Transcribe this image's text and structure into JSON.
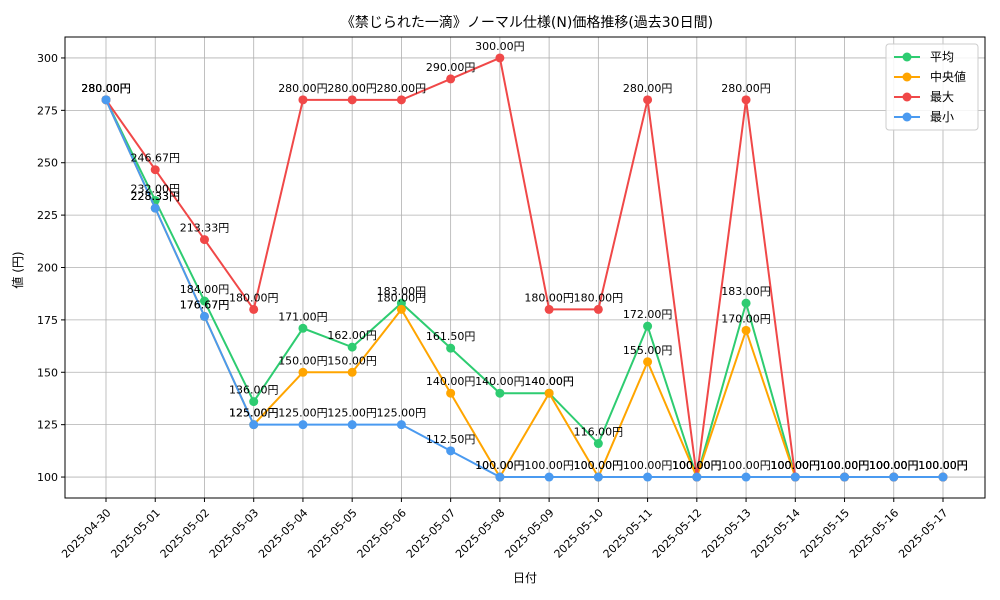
{
  "chart_data": {
    "type": "line",
    "title": "《禁じられた一滴》ノーマル仕様(N)価格推移(過去30日間)",
    "xlabel": "日付",
    "ylabel": "値 (円)",
    "ylim": [
      90,
      310
    ],
    "yticks": [
      100,
      125,
      150,
      175,
      200,
      225,
      250,
      275,
      300
    ],
    "grid": true,
    "legend_position": "top-right",
    "value_suffix": "円",
    "categories": [
      "2025-04-30",
      "2025-05-01",
      "2025-05-02",
      "2025-05-03",
      "2025-05-04",
      "2025-05-05",
      "2025-05-06",
      "2025-05-07",
      "2025-05-08",
      "2025-05-09",
      "2025-05-10",
      "2025-05-11",
      "2025-05-12",
      "2025-05-13",
      "2025-05-14",
      "2025-05-15",
      "2025-05-16",
      "2025-05-17"
    ],
    "series": [
      {
        "name": "平均",
        "color": "#2ecc71",
        "values": [
          280.0,
          232.0,
          184.0,
          136.0,
          171.0,
          162.0,
          183.0,
          161.5,
          140.0,
          140.0,
          116.0,
          172.0,
          100.0,
          183.0,
          100.0,
          100.0,
          100.0,
          100.0
        ]
      },
      {
        "name": "中央値",
        "color": "#ffa500",
        "values": [
          280.0,
          228.33,
          176.67,
          125.0,
          150.0,
          150.0,
          180.0,
          140.0,
          100.0,
          140.0,
          100.0,
          155.0,
          100.0,
          170.0,
          100.0,
          100.0,
          100.0,
          100.0
        ]
      },
      {
        "name": "最大",
        "color": "#f04848",
        "values": [
          280.0,
          246.67,
          213.33,
          180.0,
          280.0,
          280.0,
          280.0,
          290.0,
          300.0,
          180.0,
          180.0,
          280.0,
          100.0,
          280.0,
          100.0,
          100.0,
          100.0,
          100.0
        ]
      },
      {
        "name": "最小",
        "color": "#4a9af0",
        "values": [
          280.0,
          228.33,
          176.67,
          125.0,
          125.0,
          125.0,
          125.0,
          112.5,
          100.0,
          100.0,
          100.0,
          100.0,
          100.0,
          100.0,
          100.0,
          100.0,
          100.0,
          100.0
        ]
      }
    ]
  }
}
